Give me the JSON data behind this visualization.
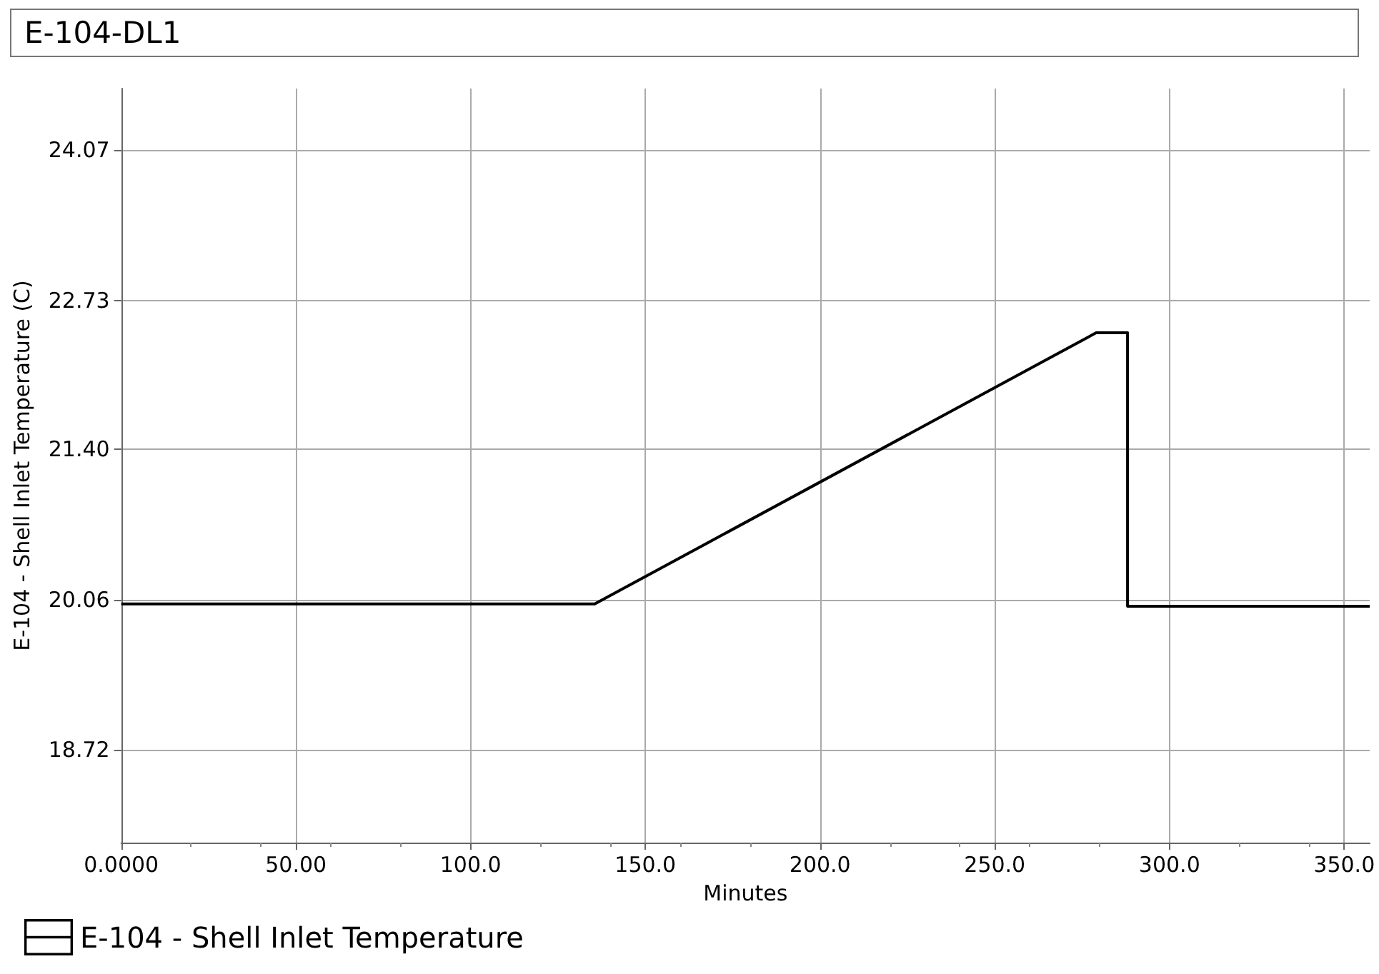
{
  "chart_data": {
    "type": "line",
    "title": "E-104-DL1",
    "xlabel": "Minutes",
    "ylabel": "E-104 - Shell Inlet Temperature (C)",
    "x": [
      0,
      135.5,
      279,
      288,
      288,
      357.3
    ],
    "series": [
      {
        "name": "E-104 - Shell Inlet Temperature",
        "color": "#000000",
        "values": [
          20.02,
          20.02,
          22.44,
          22.44,
          20.0,
          20.0
        ]
      }
    ],
    "xlim": [
      0,
      357.3
    ],
    "xticks": [
      {
        "value": 0,
        "label": "0.0000"
      },
      {
        "value": 50,
        "label": "50.00"
      },
      {
        "value": 100,
        "label": "100.0"
      },
      {
        "value": 150,
        "label": "150.0"
      },
      {
        "value": 200,
        "label": "200.0"
      },
      {
        "value": 250,
        "label": "250.0"
      },
      {
        "value": 300,
        "label": "300.0"
      },
      {
        "value": 350,
        "label": "350.0"
      }
    ],
    "ylim": [
      17.89,
      24.62
    ],
    "yticks": [
      18.72,
      20.06,
      {
        "value": 21.4,
        "label": "21.40"
      },
      22.73,
      24.07
    ],
    "grid": true,
    "legend": "bottom left",
    "marker": "none",
    "line_style": "solid"
  }
}
